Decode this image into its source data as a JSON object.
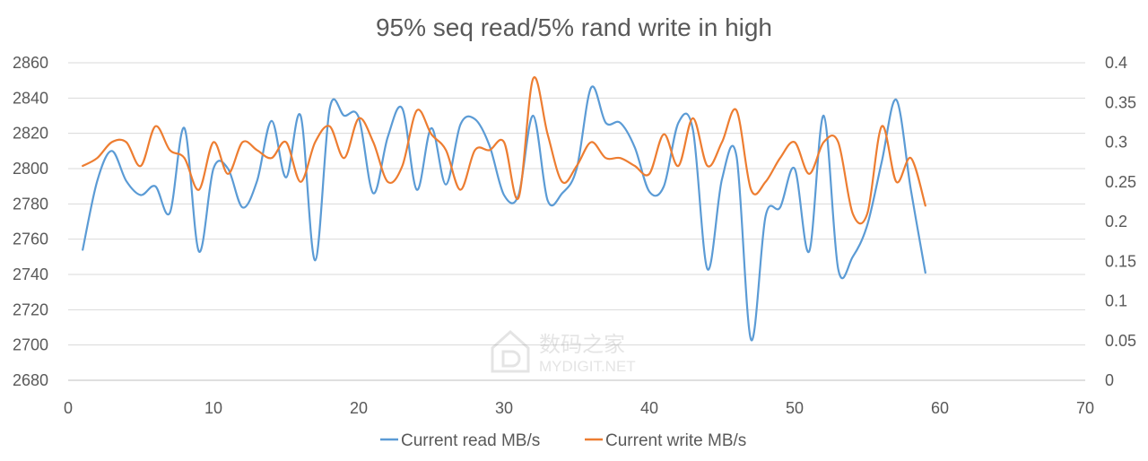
{
  "chart_data": {
    "type": "line",
    "title": "95% seq read/5% rand write in high",
    "xlabel": "",
    "ylabel": "",
    "xlim": [
      0,
      70
    ],
    "xticks": [
      0,
      10,
      20,
      30,
      40,
      50,
      60,
      70
    ],
    "ylim_left": [
      2680,
      2860
    ],
    "yticks_left": [
      2680,
      2700,
      2720,
      2740,
      2760,
      2780,
      2800,
      2820,
      2840,
      2860
    ],
    "ylim_right": [
      0,
      0.4
    ],
    "yticks_right": [
      "0",
      "0.05",
      "0.1",
      "0.15",
      "0.2",
      "0.25",
      "0.3",
      "0.35",
      "0.4"
    ],
    "grid": true,
    "legend": "bottom",
    "x": [
      1,
      2,
      3,
      4,
      5,
      6,
      7,
      8,
      9,
      10,
      11,
      12,
      13,
      14,
      15,
      16,
      17,
      18,
      19,
      20,
      21,
      22,
      23,
      24,
      25,
      26,
      27,
      28,
      29,
      30,
      31,
      32,
      33,
      34,
      35,
      36,
      37,
      38,
      39,
      40,
      41,
      42,
      43,
      44,
      45,
      46,
      47,
      48,
      49,
      50,
      51,
      52,
      53,
      54,
      55,
      56,
      57,
      58,
      59
    ],
    "series": [
      {
        "name": "Current read MB/s",
        "axis": "left",
        "color": "#5b9bd5",
        "values": [
          2754,
          2793,
          2810,
          2793,
          2785,
          2790,
          2775,
          2823,
          2753,
          2800,
          2800,
          2778,
          2793,
          2827,
          2795,
          2830,
          2748,
          2834,
          2830,
          2829,
          2786,
          2818,
          2834,
          2788,
          2823,
          2791,
          2825,
          2828,
          2813,
          2785,
          2785,
          2830,
          2782,
          2786,
          2800,
          2846,
          2826,
          2826,
          2812,
          2787,
          2790,
          2826,
          2822,
          2743,
          2794,
          2807,
          2703,
          2773,
          2778,
          2800,
          2753,
          2830,
          2743,
          2750,
          2768,
          2804,
          2839,
          2788,
          2741
        ]
      },
      {
        "name": "Current write MB/s",
        "axis": "right",
        "color": "#ed7d31",
        "values": [
          0.27,
          0.28,
          0.3,
          0.3,
          0.27,
          0.32,
          0.29,
          0.28,
          0.24,
          0.3,
          0.26,
          0.3,
          0.29,
          0.28,
          0.3,
          0.25,
          0.3,
          0.32,
          0.28,
          0.33,
          0.3,
          0.25,
          0.27,
          0.34,
          0.31,
          0.29,
          0.24,
          0.29,
          0.29,
          0.3,
          0.23,
          0.38,
          0.31,
          0.25,
          0.27,
          0.3,
          0.28,
          0.28,
          0.27,
          0.26,
          0.31,
          0.27,
          0.33,
          0.27,
          0.3,
          0.34,
          0.24,
          0.25,
          0.28,
          0.3,
          0.26,
          0.3,
          0.3,
          0.21,
          0.21,
          0.32,
          0.25,
          0.28,
          0.22
        ]
      }
    ]
  },
  "watermark": {
    "text_cn": "数码之家",
    "text_en": "MYDIGIT.NET"
  }
}
